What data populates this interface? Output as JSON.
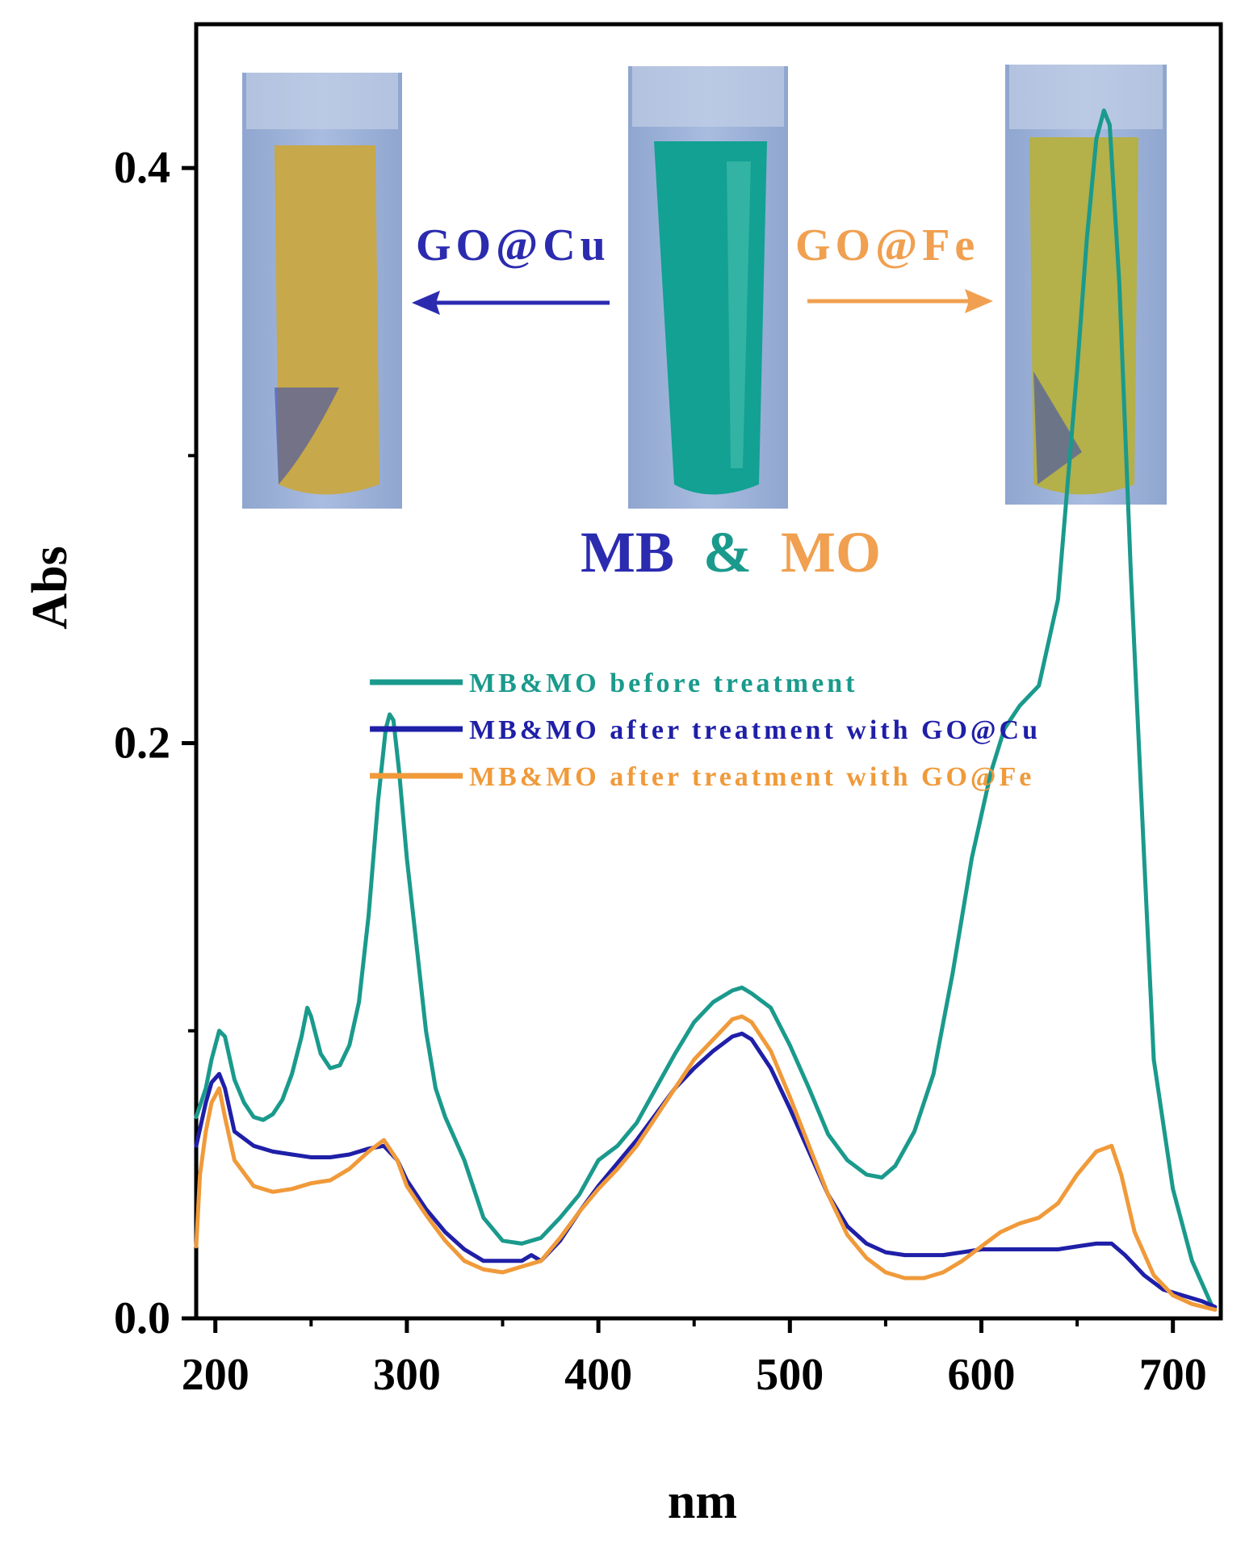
{
  "colors": {
    "before": "#1a9a8c",
    "cu": "#1f1fa8",
    "fe": "#f09a3a",
    "mb": "#2b2bb0",
    "mix_amp": "#1a9a8c",
    "mo": "#f0a050"
  },
  "inset": {
    "label_cu": "GO@Cu",
    "label_fe": "GO@Fe",
    "mix_mb": "MB",
    "mix_amp": "&",
    "mix_mo": "MO",
    "vials": [
      {
        "name": "after GO@Cu",
        "liquid": "#c7a84a",
        "tint": "#3c4fb0"
      },
      {
        "name": "before",
        "liquid": "#12a192",
        "tint": "#0f8f80"
      },
      {
        "name": "after GO@Fe",
        "liquid": "#b4b04a",
        "tint": "#3c4fb0"
      }
    ]
  },
  "chart_data": {
    "type": "line",
    "xlabel": "nm",
    "ylabel": "Abs",
    "xlim": [
      190,
      725
    ],
    "ylim": [
      0,
      0.45
    ],
    "xticks": [
      "200",
      "300",
      "400",
      "500",
      "600",
      "700"
    ],
    "yticks": [
      "0.0",
      "0.2",
      "0.4"
    ],
    "grid": false,
    "legend_position": "center",
    "series": [
      {
        "name": "MB&MO before treatment",
        "color_key": "before",
        "points": [
          [
            190,
            0.07
          ],
          [
            195,
            0.08
          ],
          [
            198,
            0.09
          ],
          [
            202,
            0.1
          ],
          [
            205,
            0.098
          ],
          [
            210,
            0.083
          ],
          [
            215,
            0.075
          ],
          [
            220,
            0.07
          ],
          [
            225,
            0.069
          ],
          [
            230,
            0.071
          ],
          [
            235,
            0.076
          ],
          [
            240,
            0.085
          ],
          [
            245,
            0.098
          ],
          [
            248,
            0.108
          ],
          [
            250,
            0.105
          ],
          [
            255,
            0.092
          ],
          [
            260,
            0.087
          ],
          [
            265,
            0.088
          ],
          [
            270,
            0.095
          ],
          [
            275,
            0.11
          ],
          [
            280,
            0.14
          ],
          [
            285,
            0.18
          ],
          [
            289,
            0.205
          ],
          [
            291,
            0.21
          ],
          [
            293,
            0.208
          ],
          [
            296,
            0.19
          ],
          [
            300,
            0.16
          ],
          [
            305,
            0.13
          ],
          [
            310,
            0.1
          ],
          [
            315,
            0.08
          ],
          [
            320,
            0.07
          ],
          [
            330,
            0.055
          ],
          [
            340,
            0.035
          ],
          [
            350,
            0.027
          ],
          [
            360,
            0.026
          ],
          [
            370,
            0.028
          ],
          [
            380,
            0.035
          ],
          [
            390,
            0.043
          ],
          [
            400,
            0.055
          ],
          [
            410,
            0.06
          ],
          [
            420,
            0.068
          ],
          [
            430,
            0.08
          ],
          [
            440,
            0.092
          ],
          [
            450,
            0.103
          ],
          [
            460,
            0.11
          ],
          [
            470,
            0.114
          ],
          [
            475,
            0.115
          ],
          [
            480,
            0.113
          ],
          [
            490,
            0.108
          ],
          [
            500,
            0.095
          ],
          [
            510,
            0.08
          ],
          [
            520,
            0.064
          ],
          [
            530,
            0.055
          ],
          [
            540,
            0.05
          ],
          [
            548,
            0.049
          ],
          [
            555,
            0.053
          ],
          [
            565,
            0.065
          ],
          [
            575,
            0.085
          ],
          [
            585,
            0.12
          ],
          [
            595,
            0.16
          ],
          [
            605,
            0.19
          ],
          [
            612,
            0.205
          ],
          [
            620,
            0.213
          ],
          [
            630,
            0.22
          ],
          [
            640,
            0.25
          ],
          [
            650,
            0.33
          ],
          [
            655,
            0.375
          ],
          [
            660,
            0.41
          ],
          [
            664,
            0.42
          ],
          [
            667,
            0.415
          ],
          [
            672,
            0.36
          ],
          [
            678,
            0.26
          ],
          [
            685,
            0.16
          ],
          [
            690,
            0.09
          ],
          [
            700,
            0.045
          ],
          [
            710,
            0.02
          ],
          [
            720,
            0.005
          ]
        ]
      },
      {
        "name": "MB&MO after treatment with GO@Cu",
        "color_key": "cu",
        "points": [
          [
            190,
            0.06
          ],
          [
            195,
            0.075
          ],
          [
            198,
            0.082
          ],
          [
            202,
            0.085
          ],
          [
            205,
            0.08
          ],
          [
            210,
            0.065
          ],
          [
            220,
            0.06
          ],
          [
            230,
            0.058
          ],
          [
            240,
            0.057
          ],
          [
            250,
            0.056
          ],
          [
            260,
            0.056
          ],
          [
            270,
            0.057
          ],
          [
            280,
            0.059
          ],
          [
            288,
            0.06
          ],
          [
            295,
            0.055
          ],
          [
            300,
            0.048
          ],
          [
            310,
            0.038
          ],
          [
            320,
            0.03
          ],
          [
            330,
            0.024
          ],
          [
            340,
            0.02
          ],
          [
            350,
            0.02
          ],
          [
            360,
            0.02
          ],
          [
            365,
            0.022
          ],
          [
            370,
            0.02
          ],
          [
            380,
            0.027
          ],
          [
            390,
            0.037
          ],
          [
            400,
            0.046
          ],
          [
            410,
            0.054
          ],
          [
            420,
            0.062
          ],
          [
            430,
            0.071
          ],
          [
            440,
            0.08
          ],
          [
            450,
            0.087
          ],
          [
            460,
            0.093
          ],
          [
            470,
            0.098
          ],
          [
            475,
            0.099
          ],
          [
            480,
            0.097
          ],
          [
            490,
            0.087
          ],
          [
            500,
            0.073
          ],
          [
            510,
            0.058
          ],
          [
            520,
            0.043
          ],
          [
            530,
            0.032
          ],
          [
            540,
            0.026
          ],
          [
            550,
            0.023
          ],
          [
            560,
            0.022
          ],
          [
            570,
            0.022
          ],
          [
            580,
            0.022
          ],
          [
            590,
            0.023
          ],
          [
            600,
            0.024
          ],
          [
            610,
            0.024
          ],
          [
            620,
            0.024
          ],
          [
            630,
            0.024
          ],
          [
            640,
            0.024
          ],
          [
            650,
            0.025
          ],
          [
            660,
            0.026
          ],
          [
            668,
            0.026
          ],
          [
            675,
            0.022
          ],
          [
            685,
            0.015
          ],
          [
            695,
            0.01
          ],
          [
            705,
            0.008
          ],
          [
            715,
            0.006
          ],
          [
            722,
            0.004
          ]
        ]
      },
      {
        "name": "MB&MO after treatment with GO@Fe",
        "color_key": "fe",
        "points": [
          [
            190,
            0.025
          ],
          [
            192,
            0.05
          ],
          [
            195,
            0.065
          ],
          [
            198,
            0.075
          ],
          [
            202,
            0.08
          ],
          [
            205,
            0.07
          ],
          [
            210,
            0.055
          ],
          [
            220,
            0.046
          ],
          [
            230,
            0.044
          ],
          [
            240,
            0.045
          ],
          [
            250,
            0.047
          ],
          [
            260,
            0.048
          ],
          [
            270,
            0.052
          ],
          [
            280,
            0.058
          ],
          [
            288,
            0.062
          ],
          [
            295,
            0.055
          ],
          [
            300,
            0.046
          ],
          [
            310,
            0.036
          ],
          [
            320,
            0.027
          ],
          [
            330,
            0.02
          ],
          [
            340,
            0.017
          ],
          [
            350,
            0.016
          ],
          [
            360,
            0.018
          ],
          [
            370,
            0.02
          ],
          [
            380,
            0.028
          ],
          [
            390,
            0.037
          ],
          [
            400,
            0.045
          ],
          [
            410,
            0.052
          ],
          [
            420,
            0.06
          ],
          [
            430,
            0.07
          ],
          [
            440,
            0.08
          ],
          [
            450,
            0.09
          ],
          [
            460,
            0.097
          ],
          [
            470,
            0.104
          ],
          [
            475,
            0.105
          ],
          [
            480,
            0.103
          ],
          [
            490,
            0.093
          ],
          [
            500,
            0.077
          ],
          [
            510,
            0.06
          ],
          [
            520,
            0.043
          ],
          [
            530,
            0.029
          ],
          [
            540,
            0.021
          ],
          [
            550,
            0.016
          ],
          [
            560,
            0.014
          ],
          [
            570,
            0.014
          ],
          [
            580,
            0.016
          ],
          [
            590,
            0.02
          ],
          [
            600,
            0.025
          ],
          [
            610,
            0.03
          ],
          [
            620,
            0.033
          ],
          [
            630,
            0.035
          ],
          [
            640,
            0.04
          ],
          [
            650,
            0.05
          ],
          [
            660,
            0.058
          ],
          [
            668,
            0.06
          ],
          [
            673,
            0.05
          ],
          [
            680,
            0.03
          ],
          [
            690,
            0.015
          ],
          [
            700,
            0.008
          ],
          [
            710,
            0.005
          ],
          [
            722,
            0.003
          ]
        ]
      }
    ]
  }
}
